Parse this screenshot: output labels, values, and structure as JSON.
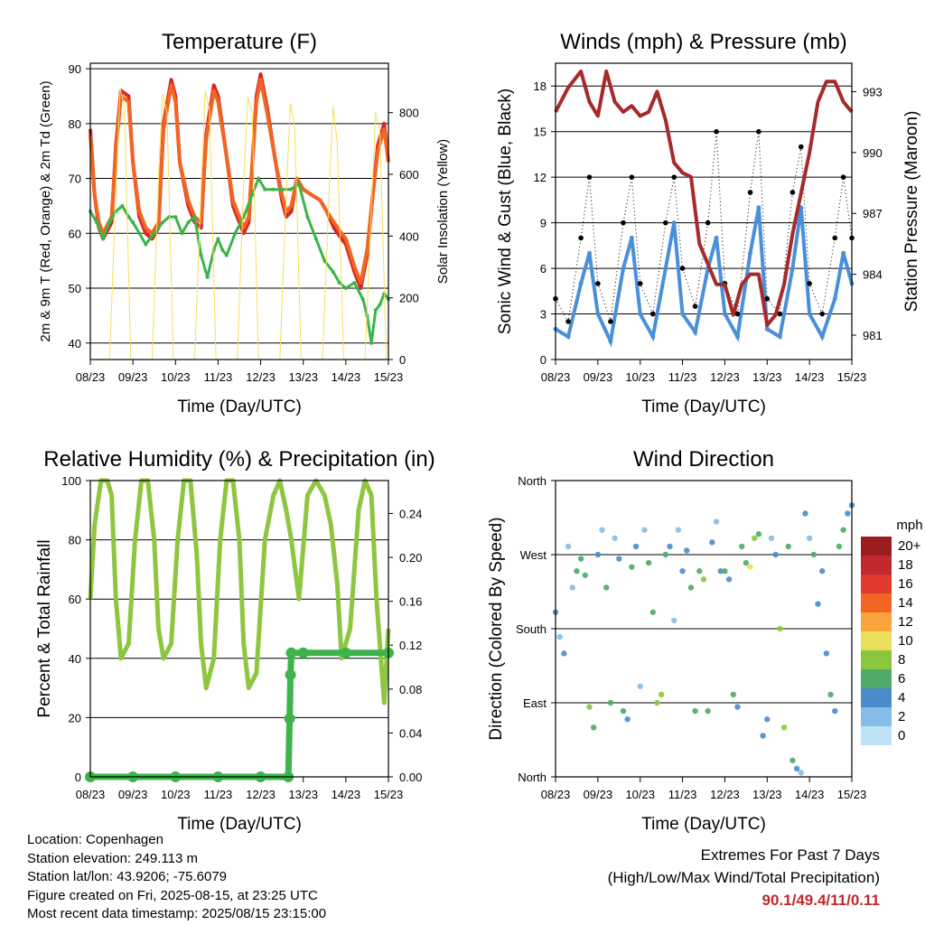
{
  "chart_data": [
    {
      "id": "temperature",
      "type": "line",
      "title": "Temperature (F)",
      "xlabel": "Time (Day/UTC)",
      "ylabel": "2m & 9m T (Red, Orange) & 2m Td (Green)",
      "y2label": "Solar Insolation (Yellow)",
      "x_ticks": [
        "08/23",
        "09/23",
        "10/23",
        "11/23",
        "12/23",
        "13/23",
        "14/23",
        "15/23"
      ],
      "xlim": [
        0,
        7
      ],
      "ylim": [
        37,
        91
      ],
      "y_ticks": [
        40,
        50,
        60,
        70,
        80,
        90
      ],
      "y2lim": [
        0,
        960
      ],
      "y2_ticks": [
        0,
        200,
        400,
        600,
        800
      ],
      "grid": true,
      "series": [
        {
          "color": "#d62728",
          "x": [
            0,
            0.1,
            0.2,
            0.3,
            0.5,
            0.6,
            0.72,
            0.9,
            1.0,
            1.15,
            1.3,
            1.45,
            1.6,
            1.72,
            1.9,
            2.0,
            2.1,
            2.3,
            2.45,
            2.6,
            2.72,
            2.9,
            3.0,
            3.2,
            3.35,
            3.5,
            3.6,
            3.72,
            3.9,
            4.0,
            4.15,
            4.35,
            4.5,
            4.6,
            4.72,
            4.85,
            5.0,
            5.2,
            5.4,
            5.55,
            5.72,
            5.9,
            6.0,
            6.2,
            6.35,
            6.5,
            6.62,
            6.75,
            6.9,
            7.0
          ],
          "y": [
            79,
            67,
            61,
            59,
            62,
            76,
            86,
            85,
            73,
            63,
            60,
            59,
            61,
            80,
            88,
            85,
            73,
            65,
            62,
            61,
            78,
            87,
            85,
            74,
            65,
            62,
            60,
            62,
            85,
            89,
            83,
            73,
            66,
            63,
            64,
            70,
            68,
            67,
            66,
            64,
            61,
            59,
            58,
            53,
            50,
            56,
            66,
            76,
            80,
            73
          ]
        },
        {
          "color": "#f26522",
          "x": [
            0,
            0.1,
            0.2,
            0.3,
            0.5,
            0.6,
            0.72,
            0.9,
            1.0,
            1.15,
            1.3,
            1.45,
            1.6,
            1.72,
            1.9,
            2.0,
            2.1,
            2.3,
            2.45,
            2.6,
            2.72,
            2.9,
            3.0,
            3.2,
            3.35,
            3.5,
            3.6,
            3.72,
            3.9,
            4.0,
            4.15,
            4.35,
            4.5,
            4.6,
            4.72,
            4.85,
            5.0,
            5.2,
            5.4,
            5.55,
            5.72,
            5.9,
            6.0,
            6.2,
            6.35,
            6.5,
            6.62,
            6.75,
            6.9,
            7.0
          ],
          "y": [
            78,
            67,
            62,
            60,
            63,
            75,
            85,
            84,
            73,
            64,
            61,
            60,
            62,
            79,
            87,
            84,
            73,
            66,
            63,
            62,
            77,
            86,
            84,
            74,
            66,
            63,
            61,
            63,
            84,
            88,
            82,
            73,
            67,
            64,
            65,
            70,
            68,
            67,
            66,
            64,
            62,
            60,
            59,
            54,
            51,
            57,
            66,
            75,
            79,
            73
          ]
        },
        {
          "color": "#3cb44b",
          "x": [
            0,
            0.15,
            0.3,
            0.45,
            0.6,
            0.75,
            0.9,
            1.0,
            1.15,
            1.3,
            1.5,
            1.7,
            1.85,
            2.0,
            2.15,
            2.3,
            2.45,
            2.6,
            2.75,
            2.9,
            3.0,
            3.1,
            3.2,
            3.4,
            3.6,
            3.8,
            3.95,
            4.1,
            4.3,
            4.5,
            4.7,
            4.9,
            5.1,
            5.3,
            5.5,
            5.7,
            5.85,
            6.0,
            6.2,
            6.4,
            6.5,
            6.6,
            6.7,
            6.8,
            6.9,
            7.0
          ],
          "y": [
            64,
            62,
            59,
            62,
            64,
            65,
            63,
            62,
            60,
            58,
            60,
            62,
            63,
            63,
            60,
            62,
            63,
            56,
            52,
            57,
            59,
            57,
            56,
            60,
            63,
            67,
            70,
            68,
            68,
            68,
            68,
            69,
            63,
            59,
            55,
            53,
            51,
            50,
            51,
            48,
            45,
            40,
            46,
            47,
            49,
            48
          ]
        },
        {
          "color": "#f5e05a",
          "x": [
            0,
            0.45,
            0.62,
            0.7,
            0.8,
            0.95,
            1.3,
            1.45,
            1.62,
            1.7,
            1.8,
            1.95,
            2.3,
            2.45,
            2.62,
            2.7,
            2.8,
            2.95,
            3.3,
            3.45,
            3.62,
            3.7,
            3.8,
            3.95,
            4.3,
            4.45,
            4.62,
            4.7,
            4.8,
            4.95,
            5.3,
            5.45,
            5.62,
            5.7,
            5.8,
            5.95,
            6.3,
            6.45,
            6.62,
            6.7,
            6.8,
            6.95,
            7.0
          ],
          "y": [
            0,
            0,
            600,
            880,
            820,
            0,
            0,
            0,
            650,
            860,
            800,
            0,
            0,
            0,
            620,
            870,
            810,
            0,
            0,
            0,
            640,
            850,
            800,
            0,
            0,
            0,
            600,
            830,
            750,
            0,
            0,
            0,
            580,
            820,
            700,
            0,
            0,
            0,
            560,
            800,
            740,
            0,
            0
          ],
          "axis": "y2"
        }
      ]
    },
    {
      "id": "winds",
      "type": "scatter",
      "title": "Winds (mph) & Pressure (mb)",
      "xlabel": "Time (Day/UTC)",
      "ylabel": "Sonic Wind & Gust (Blue, Black)",
      "y2label": "Station Pressure (Maroon)",
      "x_ticks": [
        "08/23",
        "09/23",
        "10/23",
        "11/23",
        "12/23",
        "13/23",
        "14/23",
        "15/23"
      ],
      "xlim": [
        0,
        7
      ],
      "ylim": [
        0,
        19.5
      ],
      "y_ticks": [
        0,
        3,
        6,
        9,
        12,
        15,
        18
      ],
      "y2lim": [
        979.8,
        994.4
      ],
      "y2_ticks": [
        981,
        984,
        987,
        990,
        993
      ],
      "grid": true,
      "series": [
        {
          "color": "#4a90d9",
          "x": [
            0,
            0.3,
            0.6,
            0.8,
            1.0,
            1.3,
            1.6,
            1.8,
            2.0,
            2.3,
            2.6,
            2.8,
            3.0,
            3.3,
            3.6,
            3.8,
            4.0,
            4.3,
            4.6,
            4.8,
            5.0,
            5.3,
            5.6,
            5.8,
            6.0,
            6.3,
            6.6,
            6.8,
            7.0
          ],
          "y": [
            2,
            1.5,
            5,
            7,
            3,
            1.2,
            6,
            8,
            3,
            1.5,
            6,
            9,
            3,
            1.8,
            6,
            8,
            3,
            1.5,
            7,
            10,
            2,
            1.5,
            6,
            10,
            3,
            1.5,
            4,
            7,
            5
          ]
        },
        {
          "color": "#000000",
          "x": [
            0,
            0.3,
            0.6,
            0.8,
            1.0,
            1.3,
            1.6,
            1.8,
            2.0,
            2.3,
            2.6,
            2.8,
            3.0,
            3.3,
            3.6,
            3.8,
            4.0,
            4.3,
            4.6,
            4.8,
            5.0,
            5.3,
            5.6,
            5.8,
            6.0,
            6.3,
            6.6,
            6.8,
            7.0
          ],
          "y": [
            4,
            2.5,
            8,
            12,
            5,
            2.5,
            9,
            12,
            5,
            3,
            9,
            12,
            6,
            3.5,
            9,
            15,
            5,
            3,
            11,
            15,
            4,
            3,
            11,
            14,
            5,
            3,
            8,
            12,
            8
          ]
        },
        {
          "color": "#a52a2a",
          "x": [
            0,
            0.3,
            0.6,
            0.8,
            1.0,
            1.2,
            1.4,
            1.6,
            1.8,
            2.0,
            2.2,
            2.4,
            2.6,
            2.8,
            3.0,
            3.2,
            3.4,
            3.6,
            3.8,
            4.0,
            4.2,
            4.4,
            4.6,
            4.8,
            5.0,
            5.2,
            5.4,
            5.6,
            5.8,
            6.0,
            6.2,
            6.4,
            6.6,
            6.8,
            7.0
          ],
          "y": [
            992,
            993.2,
            994,
            992.5,
            991.8,
            994,
            992.5,
            992,
            992.3,
            991.8,
            992,
            993,
            991.6,
            989.5,
            989,
            988.8,
            985.5,
            984.5,
            983.5,
            983.5,
            982,
            983.5,
            984,
            984,
            981.5,
            982,
            983.5,
            986,
            988,
            990,
            992.5,
            993.5,
            993.5,
            992.5,
            992
          ],
          "axis": "y2"
        }
      ]
    },
    {
      "id": "humidity",
      "type": "line",
      "title": "Relative Humidity (%) & Precipitation (in)",
      "xlabel": "Time (Day/UTC)",
      "ylabel": "Percent & Total Rainfall",
      "x_ticks": [
        "08/23",
        "09/23",
        "10/23",
        "11/23",
        "12/23",
        "13/23",
        "14/23",
        "15/23"
      ],
      "xlim": [
        0,
        7
      ],
      "ylim": [
        0,
        100
      ],
      "y_ticks": [
        0,
        20,
        40,
        60,
        80,
        100
      ],
      "y2lim": [
        0,
        0.27
      ],
      "y2_ticks": [
        "0.00",
        "0.04",
        "0.08",
        "0.12",
        "0.16",
        "0.20",
        "0.24"
      ],
      "grid": true,
      "series": [
        {
          "color": "#8dc63f",
          "x": [
            0,
            0.1,
            0.25,
            0.4,
            0.5,
            0.6,
            0.72,
            0.9,
            1.05,
            1.2,
            1.35,
            1.5,
            1.6,
            1.72,
            1.9,
            2.05,
            2.2,
            2.35,
            2.5,
            2.6,
            2.72,
            2.9,
            3.05,
            3.2,
            3.35,
            3.5,
            3.6,
            3.72,
            3.9,
            4.1,
            4.3,
            4.45,
            4.6,
            4.72,
            4.9,
            5.1,
            5.3,
            5.5,
            5.65,
            5.8,
            5.9,
            6.1,
            6.3,
            6.45,
            6.6,
            6.72,
            6.9,
            7.0
          ],
          "y": [
            60,
            85,
            100,
            100,
            95,
            60,
            40,
            45,
            80,
            100,
            100,
            80,
            50,
            40,
            45,
            80,
            100,
            100,
            75,
            45,
            30,
            40,
            80,
            100,
            100,
            80,
            45,
            30,
            35,
            80,
            95,
            100,
            90,
            80,
            60,
            95,
            100,
            95,
            85,
            65,
            40,
            50,
            90,
            100,
            95,
            60,
            25,
            50
          ]
        },
        {
          "color": "#3cb44b",
          "x": [
            0,
            1,
            2,
            3,
            4,
            4.65,
            4.68,
            4.7,
            4.72,
            5,
            6,
            7
          ],
          "y": [
            0,
            0,
            0,
            0,
            0,
            0,
            0.053,
            0.093,
            0.113,
            0.113,
            0.113,
            0.113
          ],
          "axis": "y2"
        }
      ]
    },
    {
      "id": "wind_direction",
      "type": "scatter",
      "title": "Wind Direction",
      "xlabel": "Time (Day/UTC)",
      "ylabel": "Direction (Colored By Speed)",
      "x_ticks": [
        "08/23",
        "09/23",
        "10/23",
        "11/23",
        "12/23",
        "13/23",
        "14/23",
        "15/23"
      ],
      "xlim": [
        0,
        7
      ],
      "ylim": [
        0,
        360
      ],
      "y_ticks": [
        "North",
        "East",
        "South",
        "West",
        "North"
      ],
      "grid": true,
      "colorbar": {
        "title": "mph",
        "labels": [
          "20+",
          "18",
          "16",
          "14",
          "12",
          "10",
          "8",
          "6",
          "4",
          "2",
          "0"
        ],
        "colors": [
          "#9b1c1f",
          "#c0282d",
          "#e03a30",
          "#f26522",
          "#f9a33c",
          "#e8e05a",
          "#8cc63f",
          "#4daa6a",
          "#4a8cc9",
          "#85bde6",
          "#bfe3f6"
        ]
      },
      "series": [
        {
          "x": [
            0.0,
            0.1,
            0.2,
            0.3,
            0.4,
            0.5,
            0.6,
            0.7,
            0.8,
            0.9,
            1.0,
            1.1,
            1.2,
            1.3,
            1.4,
            1.5,
            1.6,
            1.7,
            1.8,
            1.9,
            2.0,
            2.1,
            2.2,
            2.3,
            2.4,
            2.5,
            2.6,
            2.7,
            2.8,
            2.9,
            3.0,
            3.1,
            3.2,
            3.3,
            3.4,
            3.5,
            3.6,
            3.7,
            3.8,
            3.9,
            4.0,
            4.1,
            4.2,
            4.3,
            4.4,
            4.5,
            4.6,
            4.7,
            4.8,
            4.9,
            5.0,
            5.1,
            5.2,
            5.3,
            5.4,
            5.5,
            5.6,
            5.7,
            5.8,
            5.9,
            6.0,
            6.1,
            6.2,
            6.3,
            6.4,
            6.5,
            6.6,
            6.7,
            6.8,
            6.9,
            7.0
          ],
          "y": [
            200,
            170,
            150,
            280,
            230,
            250,
            265,
            245,
            85,
            60,
            270,
            300,
            230,
            90,
            290,
            265,
            80,
            70,
            255,
            280,
            110,
            300,
            260,
            200,
            90,
            100,
            270,
            280,
            190,
            300,
            250,
            275,
            230,
            80,
            250,
            240,
            80,
            285,
            310,
            250,
            250,
            240,
            100,
            85,
            280,
            260,
            255,
            290,
            295,
            50,
            70,
            290,
            270,
            180,
            60,
            280,
            20,
            10,
            5,
            320,
            290,
            270,
            210,
            250,
            150,
            100,
            80,
            280,
            300,
            320,
            330
          ],
          "speeds": [
            4,
            2,
            3,
            1,
            2,
            5,
            6,
            6,
            7,
            5,
            3,
            2,
            5,
            6,
            2,
            4,
            5,
            3,
            6,
            4,
            2,
            2,
            5,
            6,
            8,
            7,
            6,
            3,
            1,
            2,
            3,
            4,
            6,
            5,
            6,
            7,
            5,
            4,
            2,
            3,
            6,
            3,
            5,
            4,
            5,
            6,
            9,
            8,
            6,
            4,
            3,
            2,
            4,
            7,
            8,
            6,
            5,
            3,
            2,
            3,
            2,
            6,
            4,
            3,
            4,
            5,
            4,
            5,
            6,
            4,
            3
          ]
        }
      ]
    }
  ],
  "footer": {
    "location": "Location: Copenhagen",
    "elevation": "Station elevation: 249.113 m",
    "latlon": "Station lat/lon: 43.9206; -75.6079",
    "created": "Figure created on Fri, 2025-08-15, at 23:25 UTC",
    "recent": "Most recent data timestamp: 2025/08/15 23:15:00"
  },
  "extremes": {
    "title": "Extremes For Past 7 Days",
    "subtitle": "(High/Low/Max Wind/Total Precipitation)",
    "values": "90.1/49.4/11/0.11"
  }
}
